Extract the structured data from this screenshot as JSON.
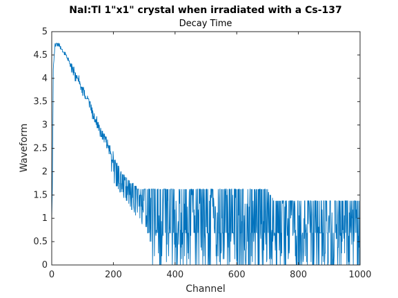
{
  "chart_data": {
    "type": "line",
    "title": "NaI:Tl 1\"x1\" crystal when irradiated with a Cs-137",
    "subtitle": "Decay Time",
    "xlabel": "Channel",
    "ylabel": "Waveform",
    "xlim": [
      0,
      1000
    ],
    "ylim": [
      0,
      5
    ],
    "xticks": [
      "0",
      "200",
      "400",
      "600",
      "800",
      "1000"
    ],
    "yticks": [
      "0",
      "0.5",
      "1",
      "1.5",
      "2",
      "2.5",
      "3",
      "3.5",
      "4",
      "4.5",
      "5"
    ],
    "grid": false,
    "series": [
      {
        "color": "#0072BD",
        "envelope_x": [
          0,
          2,
          5,
          10,
          15,
          25,
          50,
          100,
          150,
          200,
          250,
          300,
          350,
          400,
          500,
          600,
          700,
          800,
          900,
          1000
        ],
        "envelope_y": [
          1.0,
          1.6,
          4.2,
          4.7,
          4.75,
          4.7,
          4.45,
          3.75,
          3.0,
          2.3,
          1.8,
          1.55,
          1.45,
          1.35,
          1.3,
          1.3,
          1.3,
          1.3,
          1.3,
          1.3
        ],
        "upper_x": [
          0,
          200,
          230,
          280,
          330,
          380,
          420,
          600,
          700,
          720,
          1000
        ],
        "upper_y": [
          4.7,
          2.3,
          1.95,
          1.62,
          1.6,
          1.6,
          1.6,
          1.6,
          1.6,
          1.36,
          1.36
        ],
        "lower_x": [
          0,
          150,
          200,
          230,
          260,
          290,
          310,
          320,
          1000
        ],
        "lower_y": [
          4.7,
          2.6,
          1.75,
          1.5,
          1.2,
          0.9,
          0.7,
          0.0,
          0.0
        ]
      }
    ]
  }
}
